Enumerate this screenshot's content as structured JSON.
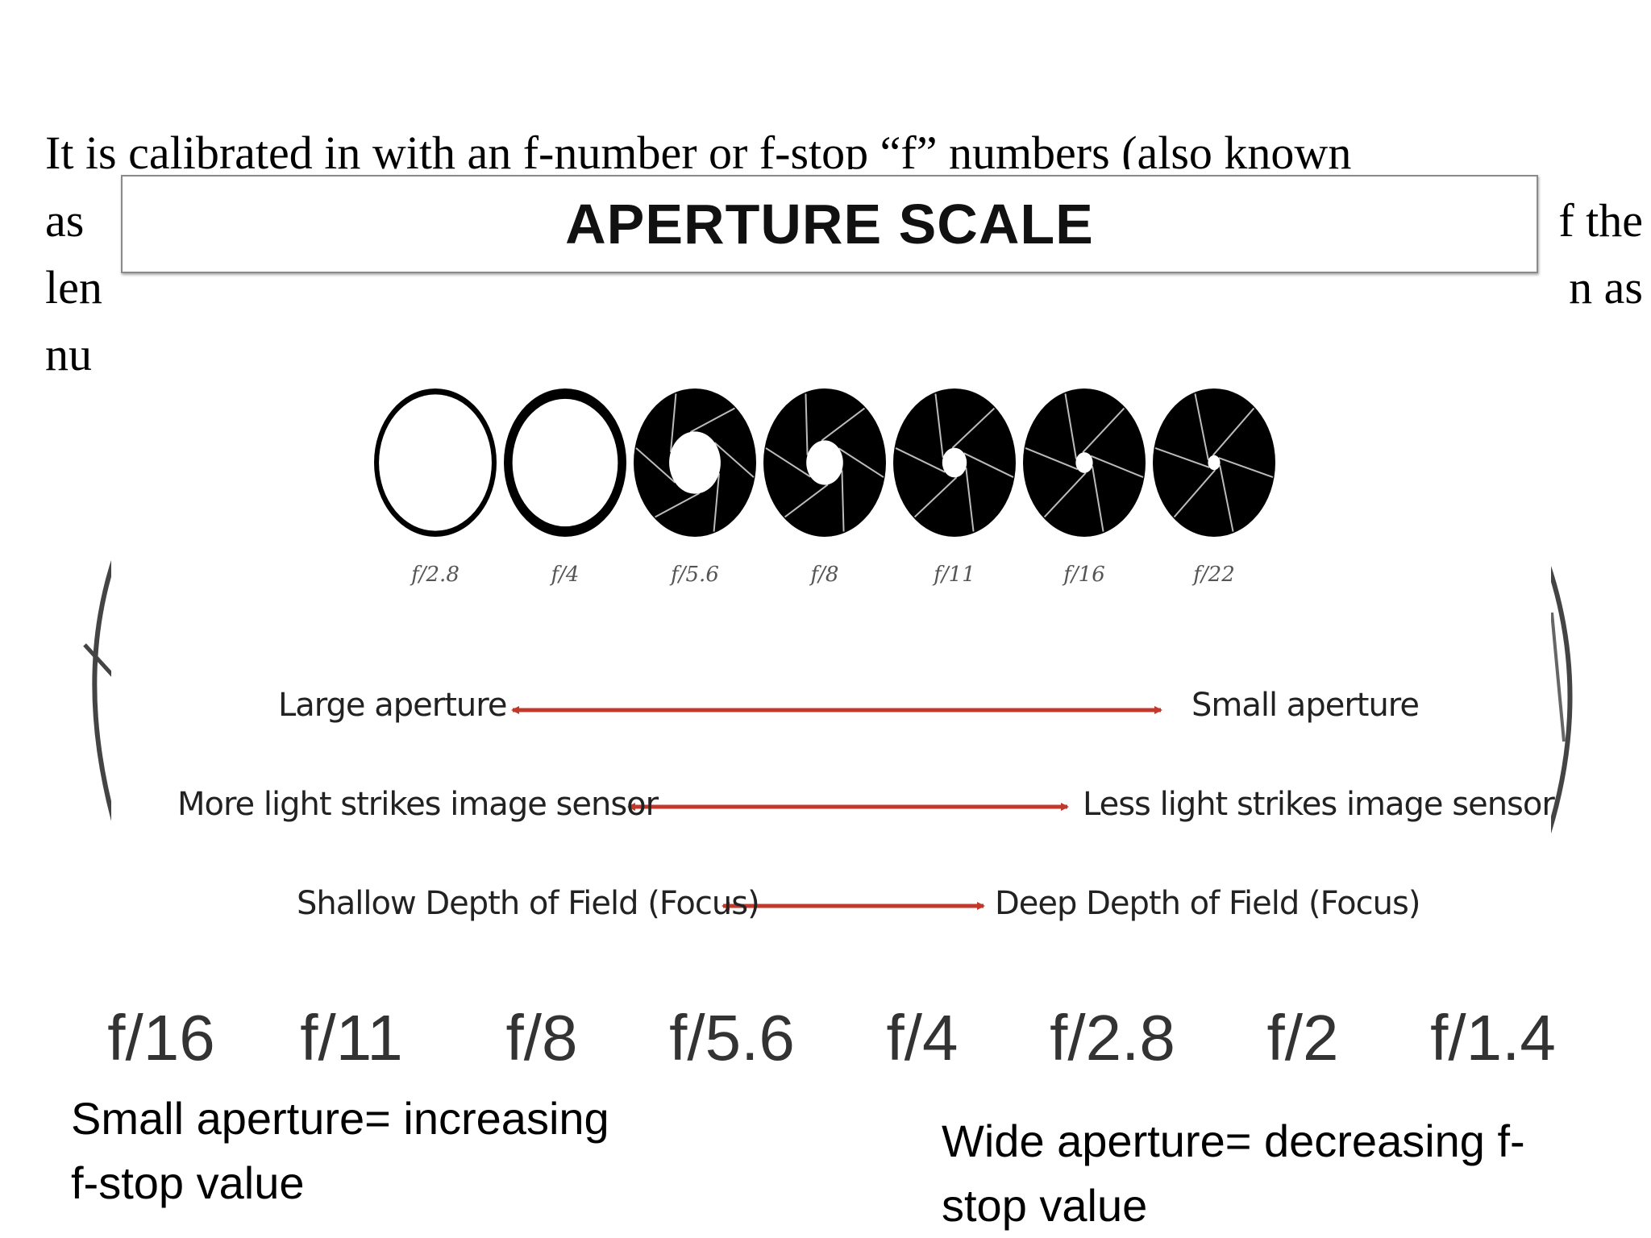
{
  "paragraph": {
    "line1": "It is calibrated in with an f-number or f-stop “f” numbers (also known",
    "line2_left": "as",
    "line2_right": "f the",
    "line3_left": "len",
    "line3_right": "n as",
    "line4_left": "nu"
  },
  "diagram": {
    "title": "APERTURE SCALE",
    "apertures": [
      {
        "label": "f/2.8",
        "opening": 0.92
      },
      {
        "label": "f/4",
        "opening": 0.86
      },
      {
        "label": "f/5.6",
        "opening": 0.42
      },
      {
        "label": "f/8",
        "opening": 0.3
      },
      {
        "label": "f/11",
        "opening": 0.2
      },
      {
        "label": "f/16",
        "opening": 0.14
      },
      {
        "label": "f/22",
        "opening": 0.1
      }
    ],
    "rows": [
      {
        "left": "Large aperture",
        "right": "Small aperture"
      },
      {
        "left": "More light strikes image sensor",
        "right": "Less light strikes image sensor"
      },
      {
        "left": "Shallow Depth of Field (Focus)",
        "right": "Deep Depth of Field (Focus)"
      }
    ],
    "arrow_color": "#c0392b"
  },
  "background_scale": {
    "labels": [
      "f/16",
      "f/11",
      "f/8",
      "f/5.6",
      "f/4",
      "f/2.8",
      "f/2",
      "f/1.4"
    ]
  },
  "captions": {
    "left_line1": "Small aperture= increasing",
    "left_line2": "f-stop value",
    "right_line1": "Wide aperture= decreasing f-",
    "right_line2": "stop value"
  }
}
